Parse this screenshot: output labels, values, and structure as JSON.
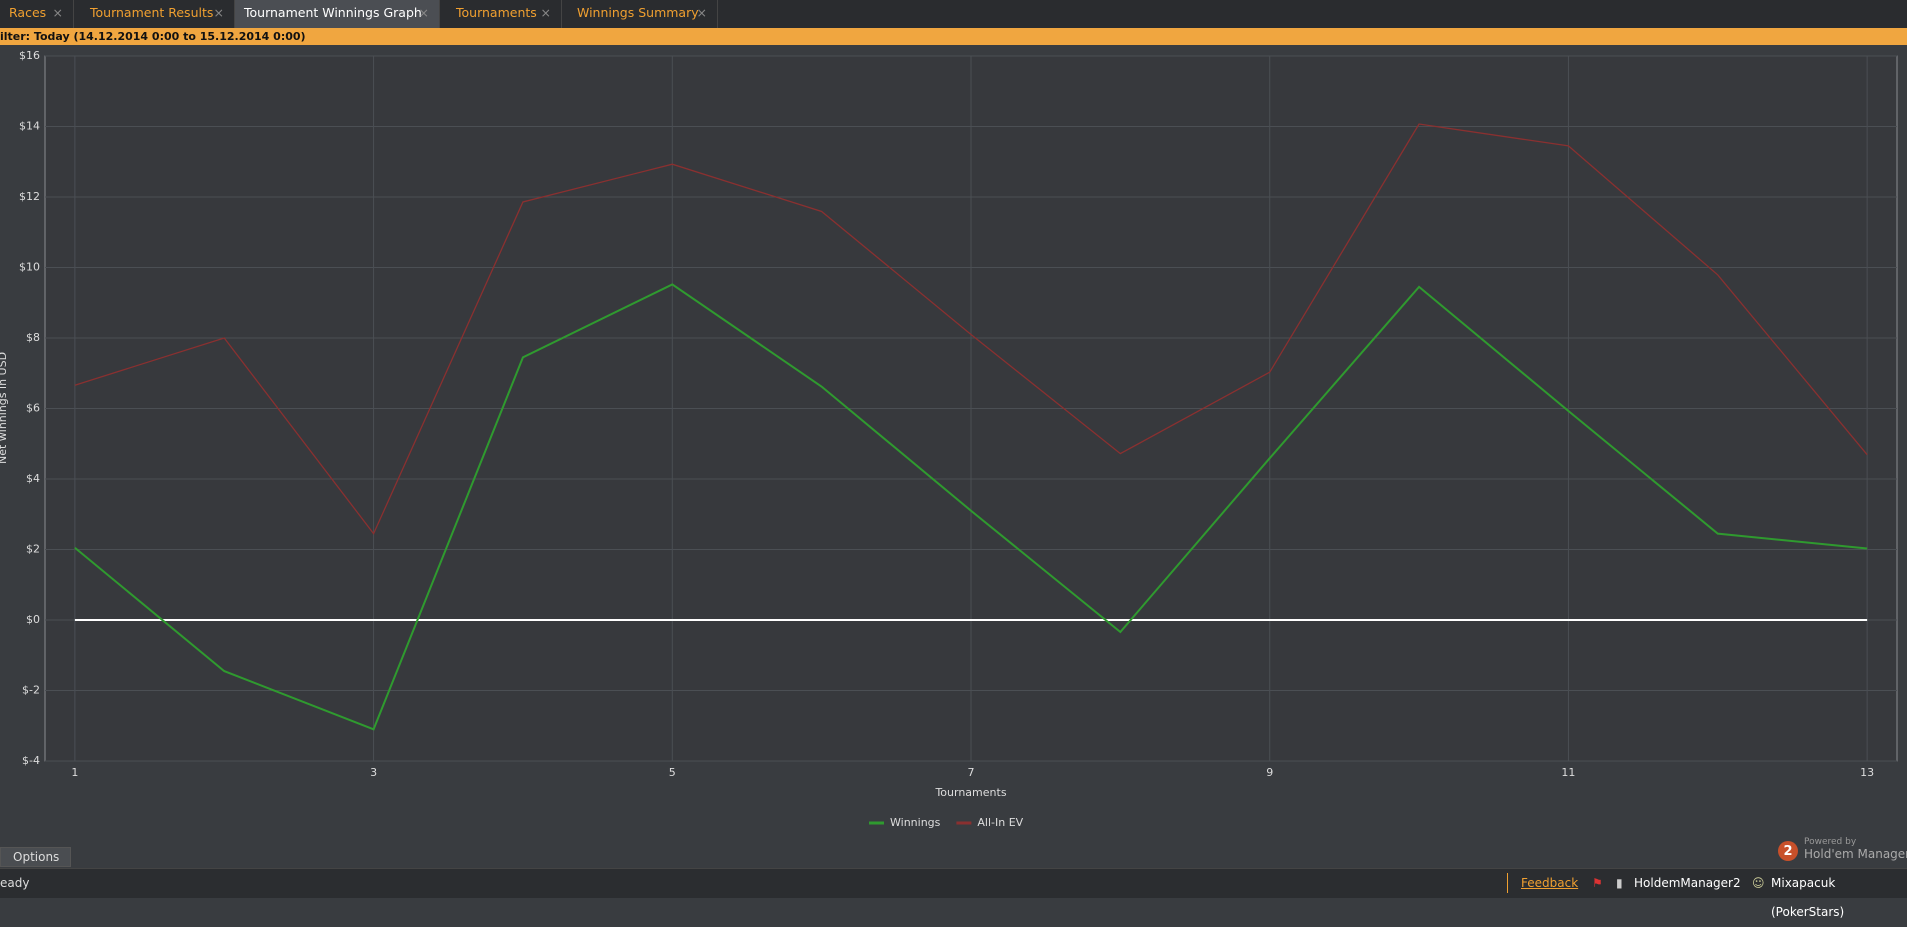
{
  "tabs": [
    "Races",
    "Tournament Results",
    "Tournament Winnings Graph",
    "Tournaments",
    "Winnings Summary"
  ],
  "filter": "ilter: Today (14.12.2014 0:00 to 15.12.2014 0:00)",
  "options_button": "Options",
  "branding": {
    "powered_by": "Powered by",
    "product": "Hold'em Manager",
    "badge": "2"
  },
  "status_bar": {
    "status": "eady",
    "feedback": "Feedback",
    "app": "HoldemManager2",
    "user": "Mixapacuk (PokerStars)"
  },
  "chart_data": {
    "type": "line",
    "x_label": "Tournaments",
    "y_label": "Net winnings in USD",
    "x": [
      1,
      2,
      3,
      4,
      5,
      6,
      7,
      8,
      9,
      10,
      11,
      12,
      13
    ],
    "series": [
      {
        "name": "Winnings",
        "color": "#2f9a2f",
        "values": [
          2.05,
          -1.45,
          -3.1,
          7.45,
          9.52,
          6.62,
          3.1,
          -0.34,
          4.59,
          9.45,
          5.93,
          2.45,
          2.03
        ]
      },
      {
        "name": "All-In EV",
        "color": "#8a3030",
        "values": [
          6.66,
          8.0,
          2.45,
          11.86,
          12.93,
          11.59,
          8.1,
          4.72,
          7.03,
          14.07,
          13.45,
          9.79,
          4.69
        ]
      }
    ],
    "xlim": [
      0.8,
      13.2
    ],
    "xticks": [
      1,
      3,
      5,
      7,
      9,
      11,
      13
    ],
    "ylim": [
      -4,
      16
    ],
    "yticks": [
      {
        "value": -4,
        "label": "$-4"
      },
      {
        "value": -2,
        "label": "$-2"
      },
      {
        "value": 0,
        "label": "$0"
      },
      {
        "value": 2,
        "label": "$2"
      },
      {
        "value": 4,
        "label": "$4"
      },
      {
        "value": 6,
        "label": "$6"
      },
      {
        "value": 8,
        "label": "$8"
      },
      {
        "value": 10,
        "label": "$10"
      },
      {
        "value": 12,
        "label": "$12"
      },
      {
        "value": 14,
        "label": "$14"
      },
      {
        "value": 16,
        "label": "$16"
      }
    ],
    "grid": true,
    "zero_line_color": "#ffffff",
    "legend": "bottom"
  }
}
